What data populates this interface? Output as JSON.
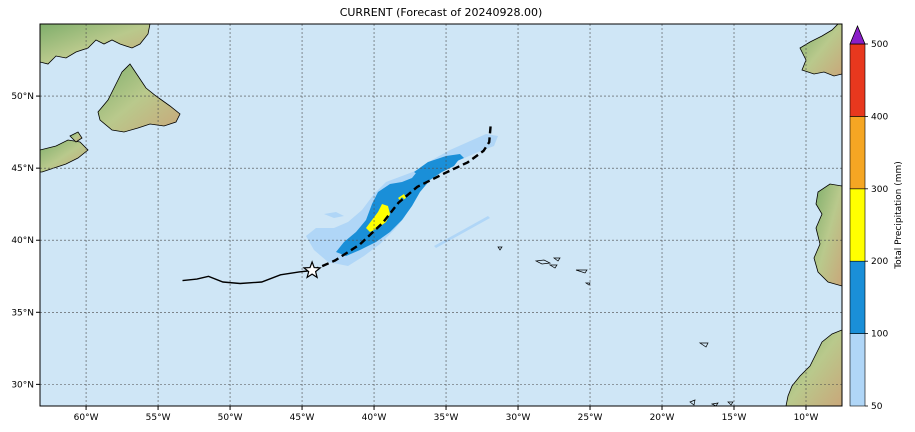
{
  "title": "CURRENT (Forecast of 20240928.00)",
  "axes": {
    "lon_range": [
      -63.2,
      -7.5
    ],
    "lat_range": [
      28.5,
      55.0
    ],
    "lon_ticks": [
      -60,
      -55,
      -50,
      -45,
      -40,
      -35,
      -30,
      -25,
      -20,
      -15,
      -10
    ],
    "lon_tick_labels": [
      "60°W",
      "55°W",
      "50°W",
      "45°W",
      "40°W",
      "35°W",
      "30°W",
      "25°W",
      "20°W",
      "15°W",
      "10°W"
    ],
    "lat_ticks": [
      30,
      35,
      40,
      45,
      50
    ],
    "lat_tick_labels": [
      "30°N",
      "35°N",
      "40°N",
      "45°N",
      "50°N"
    ],
    "grid": true
  },
  "colorbar": {
    "label": "Total Precipitation (mm)",
    "levels": [
      50,
      100,
      200,
      300,
      400,
      500
    ],
    "level_labels": [
      "50",
      "100",
      "200",
      "300",
      "400",
      "500"
    ],
    "colors": [
      "#b0d6f7",
      "#1a8fd8",
      "#ffff00",
      "#f5a623",
      "#e8381e"
    ],
    "extend_color": "#8a1fc8"
  },
  "colors": {
    "ocean": "#cfe6f6",
    "land": "#9dbf86"
  },
  "track": {
    "past": [
      [
        -53.3,
        37.2
      ],
      [
        -52.3,
        37.3
      ],
      [
        -51.5,
        37.5
      ],
      [
        -50.5,
        37.1
      ],
      [
        -49.3,
        37.0
      ],
      [
        -47.8,
        37.1
      ],
      [
        -46.5,
        37.6
      ],
      [
        -45.2,
        37.8
      ],
      [
        -44.3,
        37.9
      ]
    ],
    "forecast": [
      [
        -44.3,
        37.9
      ],
      [
        -42.7,
        38.6
      ],
      [
        -41.0,
        39.7
      ],
      [
        -39.4,
        41.2
      ],
      [
        -38.3,
        42.6
      ],
      [
        -37.0,
        43.7
      ],
      [
        -35.2,
        44.6
      ],
      [
        -33.5,
        45.4
      ],
      [
        -32.4,
        46.2
      ],
      [
        -32.0,
        46.8
      ],
      [
        -31.9,
        48.0
      ]
    ],
    "current_position": [
      -44.3,
      37.9
    ]
  }
}
